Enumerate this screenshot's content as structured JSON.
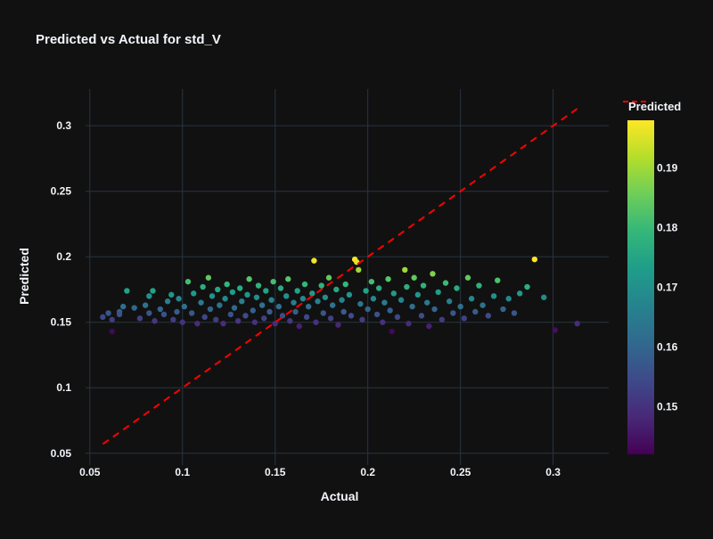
{
  "chart_data": {
    "type": "scatter",
    "title": "Predicted vs Actual for std_V",
    "xlabel": "Actual",
    "ylabel": "Predicted",
    "xlim": [
      0.0477,
      0.33
    ],
    "ylim": [
      0.041,
      0.328
    ],
    "xticks": [
      0.05,
      0.1,
      0.15,
      0.2,
      0.25,
      0.3
    ],
    "xtick_labels": [
      "0.05",
      "0.1",
      "0.15",
      "0.2",
      "0.25",
      "0.3"
    ],
    "yticks": [
      0.05,
      0.1,
      0.15,
      0.2,
      0.25,
      0.3
    ],
    "ytick_labels": [
      "0.05",
      "0.1",
      "0.15",
      "0.2",
      "0.25",
      "0.3"
    ],
    "grid": true,
    "background": "#111111",
    "grid_color": "#283442",
    "colorscale": "viridis",
    "colorbar": {
      "title": "Predicted",
      "range": [
        0.142,
        0.198
      ],
      "ticks": [
        0.15,
        0.16,
        0.17,
        0.18,
        0.19
      ],
      "tick_labels": [
        "0.15",
        "0.16",
        "0.17",
        "0.18",
        "0.19"
      ]
    },
    "reference_line": {
      "name": "Predicted",
      "color": "#ff0000",
      "dash": "dash",
      "x": [
        0.057,
        0.314
      ],
      "y": [
        0.057,
        0.314
      ]
    },
    "legend_placement": "top-right",
    "points": [
      [
        0.057,
        0.154
      ],
      [
        0.06,
        0.157
      ],
      [
        0.062,
        0.143
      ],
      [
        0.062,
        0.152
      ],
      [
        0.066,
        0.158
      ],
      [
        0.066,
        0.156
      ],
      [
        0.068,
        0.162
      ],
      [
        0.07,
        0.174
      ],
      [
        0.074,
        0.161
      ],
      [
        0.077,
        0.153
      ],
      [
        0.08,
        0.163
      ],
      [
        0.082,
        0.17
      ],
      [
        0.082,
        0.157
      ],
      [
        0.084,
        0.174
      ],
      [
        0.085,
        0.151
      ],
      [
        0.088,
        0.16
      ],
      [
        0.09,
        0.156
      ],
      [
        0.092,
        0.166
      ],
      [
        0.094,
        0.171
      ],
      [
        0.095,
        0.152
      ],
      [
        0.097,
        0.158
      ],
      [
        0.098,
        0.168
      ],
      [
        0.1,
        0.15
      ],
      [
        0.101,
        0.162
      ],
      [
        0.103,
        0.181
      ],
      [
        0.105,
        0.157
      ],
      [
        0.106,
        0.172
      ],
      [
        0.108,
        0.149
      ],
      [
        0.11,
        0.165
      ],
      [
        0.111,
        0.177
      ],
      [
        0.112,
        0.154
      ],
      [
        0.114,
        0.184
      ],
      [
        0.115,
        0.16
      ],
      [
        0.116,
        0.17
      ],
      [
        0.118,
        0.152
      ],
      [
        0.119,
        0.175
      ],
      [
        0.12,
        0.163
      ],
      [
        0.122,
        0.149
      ],
      [
        0.123,
        0.168
      ],
      [
        0.124,
        0.179
      ],
      [
        0.126,
        0.156
      ],
      [
        0.127,
        0.173
      ],
      [
        0.128,
        0.161
      ],
      [
        0.13,
        0.151
      ],
      [
        0.131,
        0.176
      ],
      [
        0.132,
        0.166
      ],
      [
        0.134,
        0.155
      ],
      [
        0.135,
        0.171
      ],
      [
        0.136,
        0.183
      ],
      [
        0.138,
        0.159
      ],
      [
        0.139,
        0.15
      ],
      [
        0.14,
        0.169
      ],
      [
        0.141,
        0.178
      ],
      [
        0.143,
        0.163
      ],
      [
        0.144,
        0.153
      ],
      [
        0.145,
        0.174
      ],
      [
        0.147,
        0.158
      ],
      [
        0.148,
        0.167
      ],
      [
        0.149,
        0.181
      ],
      [
        0.15,
        0.149
      ],
      [
        0.152,
        0.162
      ],
      [
        0.153,
        0.176
      ],
      [
        0.154,
        0.155
      ],
      [
        0.156,
        0.17
      ],
      [
        0.157,
        0.183
      ],
      [
        0.158,
        0.151
      ],
      [
        0.16,
        0.165
      ],
      [
        0.161,
        0.158
      ],
      [
        0.162,
        0.174
      ],
      [
        0.163,
        0.147
      ],
      [
        0.165,
        0.168
      ],
      [
        0.166,
        0.179
      ],
      [
        0.167,
        0.154
      ],
      [
        0.168,
        0.162
      ],
      [
        0.17,
        0.172
      ],
      [
        0.171,
        0.197
      ],
      [
        0.172,
        0.15
      ],
      [
        0.173,
        0.166
      ],
      [
        0.175,
        0.178
      ],
      [
        0.176,
        0.157
      ],
      [
        0.177,
        0.169
      ],
      [
        0.179,
        0.184
      ],
      [
        0.18,
        0.153
      ],
      [
        0.181,
        0.163
      ],
      [
        0.183,
        0.175
      ],
      [
        0.184,
        0.148
      ],
      [
        0.186,
        0.167
      ],
      [
        0.187,
        0.158
      ],
      [
        0.188,
        0.179
      ],
      [
        0.19,
        0.171
      ],
      [
        0.191,
        0.155
      ],
      [
        0.193,
        0.198
      ],
      [
        0.194,
        0.196
      ],
      [
        0.195,
        0.19
      ],
      [
        0.196,
        0.164
      ],
      [
        0.197,
        0.152
      ],
      [
        0.199,
        0.174
      ],
      [
        0.2,
        0.16
      ],
      [
        0.202,
        0.181
      ],
      [
        0.203,
        0.168
      ],
      [
        0.205,
        0.156
      ],
      [
        0.206,
        0.176
      ],
      [
        0.208,
        0.15
      ],
      [
        0.209,
        0.165
      ],
      [
        0.211,
        0.183
      ],
      [
        0.212,
        0.159
      ],
      [
        0.213,
        0.143
      ],
      [
        0.214,
        0.172
      ],
      [
        0.216,
        0.154
      ],
      [
        0.218,
        0.167
      ],
      [
        0.22,
        0.19
      ],
      [
        0.221,
        0.177
      ],
      [
        0.222,
        0.149
      ],
      [
        0.224,
        0.162
      ],
      [
        0.225,
        0.184
      ],
      [
        0.227,
        0.171
      ],
      [
        0.229,
        0.155
      ],
      [
        0.23,
        0.178
      ],
      [
        0.232,
        0.165
      ],
      [
        0.233,
        0.147
      ],
      [
        0.235,
        0.187
      ],
      [
        0.236,
        0.16
      ],
      [
        0.238,
        0.173
      ],
      [
        0.24,
        0.152
      ],
      [
        0.242,
        0.18
      ],
      [
        0.244,
        0.166
      ],
      [
        0.246,
        0.157
      ],
      [
        0.248,
        0.176
      ],
      [
        0.25,
        0.162
      ],
      [
        0.252,
        0.153
      ],
      [
        0.254,
        0.184
      ],
      [
        0.256,
        0.168
      ],
      [
        0.258,
        0.158
      ],
      [
        0.26,
        0.178
      ],
      [
        0.262,
        0.163
      ],
      [
        0.265,
        0.155
      ],
      [
        0.268,
        0.17
      ],
      [
        0.27,
        0.182
      ],
      [
        0.273,
        0.16
      ],
      [
        0.276,
        0.168
      ],
      [
        0.279,
        0.157
      ],
      [
        0.282,
        0.172
      ],
      [
        0.286,
        0.177
      ],
      [
        0.29,
        0.198
      ],
      [
        0.295,
        0.169
      ],
      [
        0.301,
        0.144
      ],
      [
        0.313,
        0.149
      ]
    ]
  }
}
